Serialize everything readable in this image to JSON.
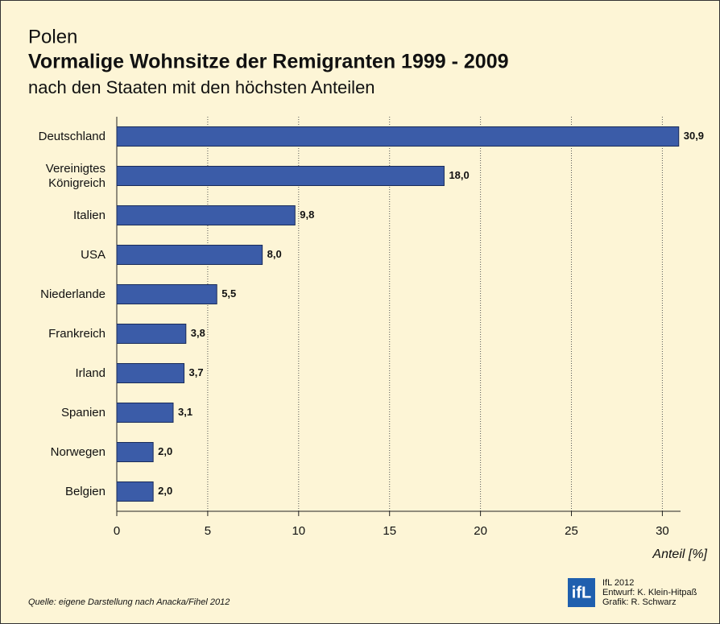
{
  "chart_data": {
    "type": "hbar",
    "supertitle": "Polen",
    "title": "Vormalige Wohnsitze der Remigranten 1999 - 2009",
    "subtitle": "nach den Staaten mit den höchsten Anteilen",
    "categories": [
      "Deutschland",
      "Vereinigtes Königreich",
      "Italien",
      "USA",
      "Niederlande",
      "Frankreich",
      "Irland",
      "Spanien",
      "Norwegen",
      "Belgien"
    ],
    "values": [
      30.9,
      18.0,
      9.8,
      8.0,
      5.5,
      3.8,
      3.7,
      3.1,
      2.0,
      2.0
    ],
    "value_labels": [
      "30,9",
      "18,0",
      "9,8",
      "8,0",
      "5,5",
      "3,8",
      "3,7",
      "3,1",
      "2,0",
      "2,0"
    ],
    "color": "#3b5ca8",
    "xlim": [
      0,
      31
    ],
    "xticks": [
      0,
      5,
      10,
      15,
      20,
      25,
      30
    ],
    "xlabel": "Anteil [%]",
    "grid": true,
    "source": "Quelle: eigene Darstellung nach Anacka/Fihel 2012",
    "logo": "ifL",
    "credits": [
      "IfL 2012",
      "Entwurf: K. Klein-Hitpaß",
      "Grafik: R. Schwarz"
    ]
  }
}
